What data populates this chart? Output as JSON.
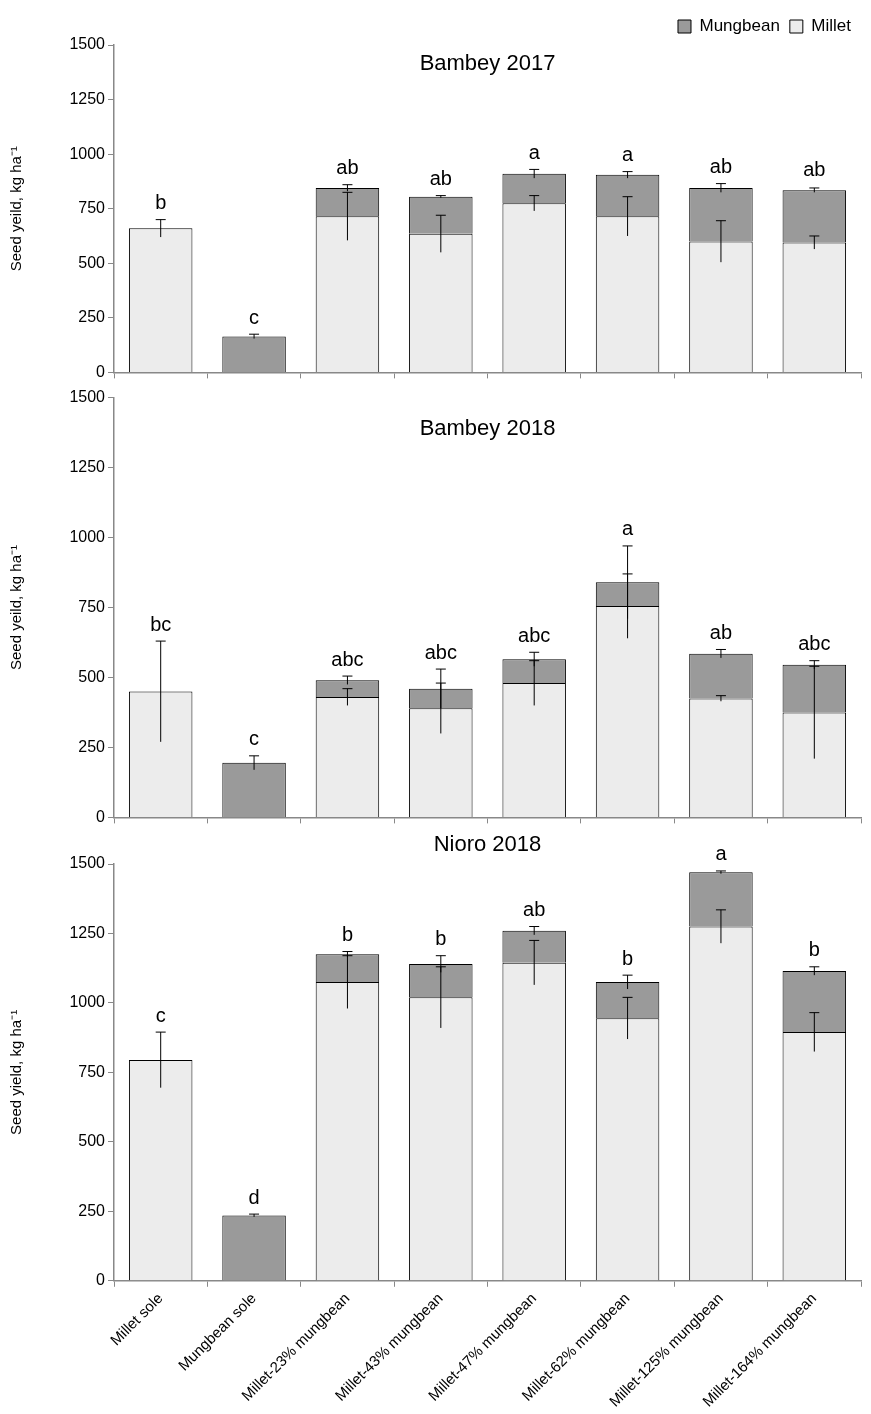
{
  "chart_data": [
    {
      "type": "bar",
      "title": "Bambey 2017",
      "ylabel": "Seed yeild, kg ha⁻¹",
      "stacked": true,
      "legend": "top right",
      "grid": false,
      "tick_labels": "y",
      "categories": [
        "Millet sole",
        "Mungbean sole",
        "Millet-23% mungbean",
        "Millet-43% mungbean",
        "Millet-47% mungbean",
        "Millet-62% mungbean",
        "Millet-125% mungbean",
        "Millet-164% mungbean"
      ],
      "ylim": [
        0,
        1500
      ],
      "yticks": [
        0,
        250,
        500,
        750,
        1000,
        1250,
        1500
      ],
      "series": [
        {
          "name": "Millet",
          "color": "#ececec",
          "values": [
            660,
            null,
            715,
            635,
            775,
            715,
            600,
            595
          ],
          "errors": [
            40,
            null,
            110,
            85,
            35,
            90,
            95,
            30
          ]
        },
        {
          "name": "Mungbean",
          "color": "#9a9a9a",
          "values": [
            null,
            165,
            130,
            170,
            135,
            190,
            245,
            240
          ],
          "errors": [
            null,
            10,
            15,
            5,
            20,
            15,
            20,
            10
          ]
        }
      ],
      "annotations": [
        {
          "text": "b",
          "x": "Millet sole",
          "y": 700
        },
        {
          "text": "c",
          "x": "Mungbean sole",
          "y": 175
        },
        {
          "text": "ab",
          "x": "Millet-23% mungbean",
          "y": 860
        },
        {
          "text": "ab",
          "x": "Millet-43% mungbean",
          "y": 810
        },
        {
          "text": "a",
          "x": "Millet-47% mungbean",
          "y": 930
        },
        {
          "text": "a",
          "x": "Millet-62% mungbean",
          "y": 920
        },
        {
          "text": "ab",
          "x": "Millet-125% mungbean",
          "y": 865
        },
        {
          "text": "ab",
          "x": "Millet-164% mungbean",
          "y": 850
        }
      ]
    },
    {
      "type": "bar",
      "title": "Bambey 2018",
      "ylabel": "Seed yeild, kg ha⁻¹",
      "stacked": true,
      "legend": false,
      "grid": false,
      "tick_labels": "y",
      "categories": [
        "Millet sole",
        "Mungbean sole",
        "Millet-23% mungbean",
        "Millet-43% mungbean",
        "Millet-47% mungbean",
        "Millet-62% mungbean",
        "Millet-125% mungbean",
        "Millet-164% mungbean"
      ],
      "ylim": [
        0,
        1500
      ],
      "yticks": [
        0,
        250,
        500,
        750,
        1000,
        1250,
        1500
      ],
      "series": [
        {
          "name": "Millet",
          "color": "#ececec",
          "values": [
            450,
            null,
            430,
            390,
            480,
            755,
            425,
            375
          ],
          "errors": [
            180,
            null,
            30,
            90,
            80,
            115,
            10,
            165
          ]
        },
        {
          "name": "Mungbean",
          "color": "#9a9a9a",
          "values": [
            null,
            195,
            60,
            70,
            85,
            85,
            160,
            170
          ],
          "errors": [
            null,
            25,
            15,
            70,
            25,
            130,
            15,
            15
          ]
        }
      ],
      "annotations": [
        {
          "text": "bc",
          "x": "Millet sole",
          "y": 630
        },
        {
          "text": "c",
          "x": "Mungbean sole",
          "y": 220
        },
        {
          "text": "abc",
          "x": "Millet-23% mungbean",
          "y": 505
        },
        {
          "text": "abc",
          "x": "Millet-43% mungbean",
          "y": 530
        },
        {
          "text": "abc",
          "x": "Millet-47% mungbean",
          "y": 590
        },
        {
          "text": "a",
          "x": "Millet-62% mungbean",
          "y": 970
        },
        {
          "text": "ab",
          "x": "Millet-125% mungbean",
          "y": 600
        },
        {
          "text": "abc",
          "x": "Millet-164% mungbean",
          "y": 560
        }
      ]
    },
    {
      "type": "bar",
      "title": "Nioro 2018",
      "ylabel": "Seed yield, kg ha⁻¹",
      "stacked": true,
      "legend": false,
      "grid": false,
      "categories": [
        "Millet sole",
        "Mungbean sole",
        "Millet-23% mungbean",
        "Millet-43% mungbean",
        "Millet-47% mungbean",
        "Millet-62% mungbean",
        "Millet-125% mungbean",
        "Millet-164% mungbean"
      ],
      "ylim": [
        0,
        1500
      ],
      "yticks": [
        0,
        250,
        500,
        750,
        1000,
        1250,
        1500
      ],
      "series": [
        {
          "name": "Millet",
          "color": "#ececec",
          "values": [
            795,
            null,
            1075,
            1020,
            1145,
            945,
            1275,
            895
          ],
          "errors": [
            100,
            null,
            95,
            110,
            80,
            75,
            60,
            70
          ]
        },
        {
          "name": "Mungbean",
          "color": "#9a9a9a",
          "values": [
            null,
            235,
            100,
            120,
            115,
            130,
            195,
            220
          ],
          "errors": [
            null,
            5,
            10,
            30,
            15,
            25,
            5,
            15
          ]
        }
      ],
      "annotations": [
        {
          "text": "c",
          "x": "Millet sole",
          "y": 895
        },
        {
          "text": "d",
          "x": "Mungbean sole",
          "y": 240
        },
        {
          "text": "b",
          "x": "Millet-23% mungbean",
          "y": 1185
        },
        {
          "text": "b",
          "x": "Millet-43% mungbean",
          "y": 1170
        },
        {
          "text": "ab",
          "x": "Millet-47% mungbean",
          "y": 1275
        },
        {
          "text": "b",
          "x": "Millet-62% mungbean",
          "y": 1100
        },
        {
          "text": "a",
          "x": "Millet-125% mungbean",
          "y": 1475
        },
        {
          "text": "b",
          "x": "Millet-164% mungbean",
          "y": 1130
        }
      ]
    }
  ]
}
